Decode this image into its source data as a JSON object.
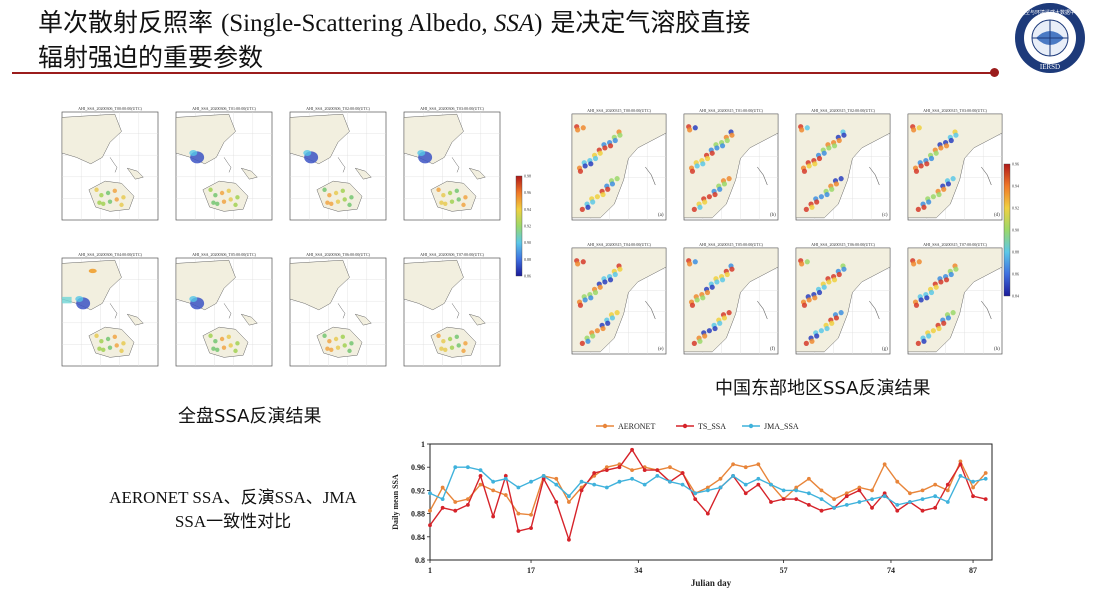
{
  "slide": {
    "title_line1_cn": "单次散射反照率 ",
    "title_line1_latin": "(Single-Scattering Albedo, ",
    "title_line1_abbr": "SSA",
    "title_line1_close": ")",
    "title_line1_tail": " 是决定气溶胶直接",
    "title_line2": "辐射强迫的重要参数",
    "logo_text_top": "航空与环境遥感大数据中心",
    "logo_text_bottom": "IERSD"
  },
  "captions": {
    "full_disk": "全盘SSA反演结果",
    "east_china": "中国东部地区SSA反演结果",
    "comparison": "AERONET SSA、反演SSA、JMA SSA一致性对比"
  },
  "maps_full_disk": {
    "titles": [
      "AHI_SSA_20200306_T00:00:00(UTC)",
      "AHI_SSA_20200306_T01:00:00(UTC)",
      "AHI_SSA_20200306_T02:00:00(UTC)",
      "AHI_SSA_20200306_T03:00:00(UTC)",
      "AHI_SSA_20200306_T04:00:00(UTC)",
      "AHI_SSA_20200306_T05:00:00(UTC)",
      "AHI_SSA_20200306_T06:00:00(UTC)",
      "AHI_SSA_20200306_T07:00:00(UTC)"
    ],
    "colorbar_ticks": [
      "0.98",
      "0.96",
      "0.94",
      "0.92",
      "0.90",
      "0.88",
      "0.86"
    ]
  },
  "maps_east_china": {
    "titles": [
      "AHI_SSA_20200315_T00:00:00(UTC)",
      "AHI_SSA_20200315_T01:00:00(UTC)",
      "AHI_SSA_20200315_T02:00:00(UTC)",
      "AHI_SSA_20200315_T03:00:00(UTC)",
      "AHI_SSA_20200315_T04:00:00(UTC)",
      "AHI_SSA_20200315_T05:00:00(UTC)",
      "AHI_SSA_20200315_T06:00:00(UTC)",
      "AHI_SSA_20200315_T07:00:00(UTC)"
    ],
    "panel_letters": [
      "(a)",
      "(b)",
      "(c)",
      "(d)",
      "(e)",
      "(f)",
      "(g)",
      "(h)"
    ],
    "colorbar_ticks": [
      "0.96",
      "0.94",
      "0.92",
      "0.90",
      "0.88",
      "0.86",
      "0.84"
    ]
  },
  "colors": {
    "aeronet": "#e8853a",
    "ts_ssa": "#d6232a",
    "jma_ssa": "#3fb2dc",
    "rule": "#9b1c1c"
  },
  "chart_data": {
    "type": "line",
    "xlabel": "Julian day",
    "ylabel": "Daily mean SSA",
    "xlim": [
      1,
      90
    ],
    "ylim": [
      0.8,
      1.0
    ],
    "xticks": [
      1,
      17,
      34,
      57,
      74,
      87
    ],
    "yticks": [
      "0.8",
      "0.84",
      "0.88",
      "0.92",
      "0.96",
      "1"
    ],
    "legend_position": "top",
    "series": [
      {
        "name": "AERONET",
        "x": [
          1,
          3,
          5,
          7,
          9,
          11,
          13,
          15,
          17,
          19,
          21,
          23,
          25,
          27,
          29,
          31,
          33,
          35,
          37,
          39,
          41,
          43,
          45,
          47,
          49,
          51,
          53,
          55,
          57,
          59,
          61,
          63,
          65,
          67,
          69,
          71,
          73,
          75,
          77,
          79,
          81,
          83,
          85,
          87,
          89
        ],
        "values": [
          0.885,
          0.925,
          0.9,
          0.905,
          0.93,
          0.92,
          0.912,
          0.88,
          0.878,
          0.945,
          0.94,
          0.9,
          0.925,
          0.945,
          0.96,
          0.965,
          0.955,
          0.96,
          0.955,
          0.96,
          0.95,
          0.915,
          0.925,
          0.94,
          0.965,
          0.96,
          0.965,
          0.93,
          0.905,
          0.925,
          0.94,
          0.92,
          0.905,
          0.915,
          0.925,
          0.92,
          0.965,
          0.935,
          0.915,
          0.92,
          0.93,
          0.92,
          0.97,
          0.925,
          0.95
        ]
      },
      {
        "name": "TS_SSA",
        "x": [
          1,
          3,
          5,
          7,
          9,
          11,
          13,
          15,
          17,
          19,
          21,
          23,
          25,
          27,
          29,
          31,
          33,
          35,
          37,
          39,
          41,
          43,
          45,
          47,
          49,
          51,
          53,
          55,
          57,
          59,
          61,
          63,
          65,
          67,
          69,
          71,
          73,
          75,
          77,
          79,
          81,
          83,
          85,
          87,
          89
        ],
        "values": [
          0.86,
          0.89,
          0.885,
          0.895,
          0.945,
          0.875,
          0.945,
          0.85,
          0.855,
          0.94,
          0.9,
          0.835,
          0.92,
          0.95,
          0.955,
          0.96,
          0.99,
          0.955,
          0.955,
          0.935,
          0.95,
          0.905,
          0.88,
          0.925,
          0.945,
          0.915,
          0.93,
          0.9,
          0.905,
          0.905,
          0.895,
          0.885,
          0.89,
          0.91,
          0.92,
          0.89,
          0.915,
          0.885,
          0.9,
          0.885,
          0.89,
          0.93,
          0.965,
          0.91,
          0.905
        ]
      },
      {
        "name": "JMA_SSA",
        "x": [
          1,
          3,
          5,
          7,
          9,
          11,
          13,
          15,
          17,
          19,
          21,
          23,
          25,
          27,
          29,
          31,
          33,
          35,
          37,
          39,
          41,
          43,
          45,
          47,
          49,
          51,
          53,
          55,
          57,
          59,
          61,
          63,
          65,
          67,
          69,
          71,
          73,
          75,
          77,
          79,
          81,
          83,
          85,
          87,
          89
        ],
        "values": [
          0.915,
          0.905,
          0.96,
          0.96,
          0.955,
          0.935,
          0.94,
          0.925,
          0.935,
          0.945,
          0.93,
          0.91,
          0.935,
          0.93,
          0.925,
          0.935,
          0.94,
          0.93,
          0.945,
          0.935,
          0.93,
          0.915,
          0.92,
          0.925,
          0.945,
          0.93,
          0.94,
          0.93,
          0.92,
          0.92,
          0.915,
          0.905,
          0.89,
          0.895,
          0.9,
          0.905,
          0.91,
          0.895,
          0.9,
          0.905,
          0.91,
          0.9,
          0.945,
          0.935,
          0.94
        ]
      }
    ]
  }
}
